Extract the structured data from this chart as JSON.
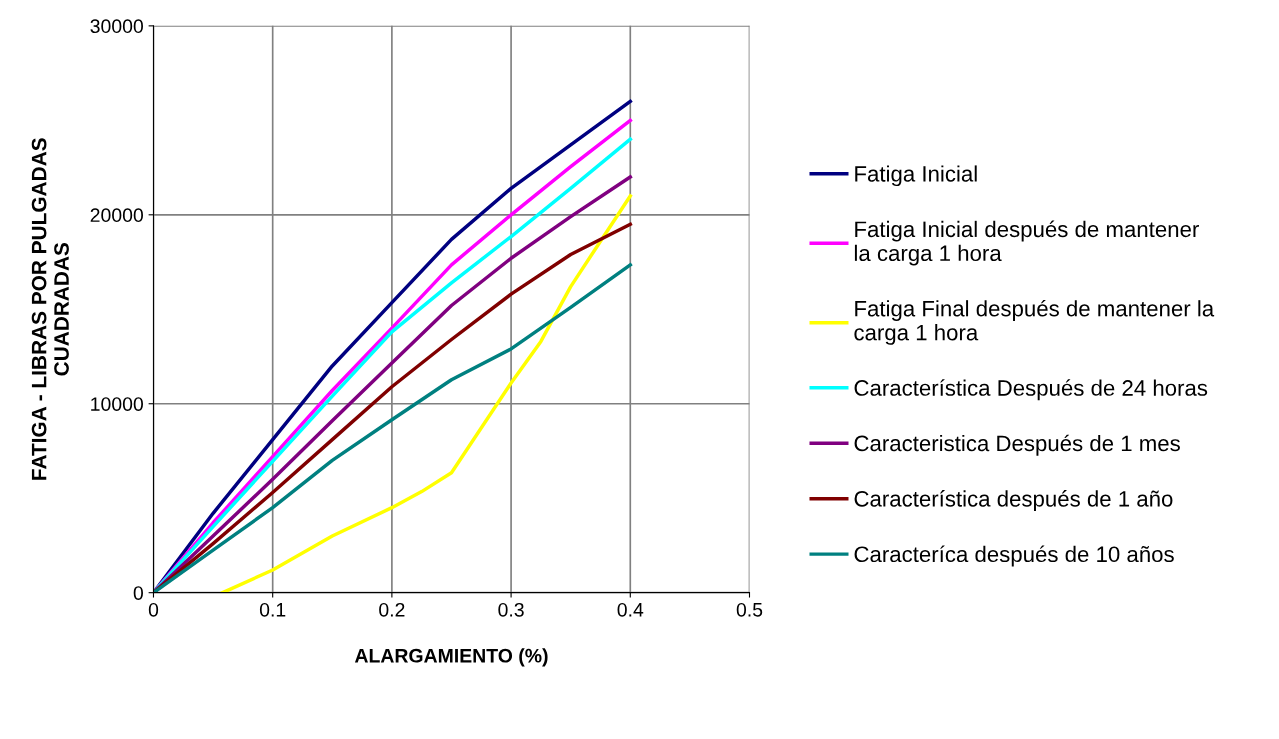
{
  "chart_data": {
    "type": "line",
    "xlabel": "ALARGAMIENTO (%)",
    "ylabel": "FATIGA - LIBRAS POR PULGADAS\nCUADRADAS",
    "x": [
      0,
      0.05,
      0.1,
      0.15,
      0.2,
      0.25,
      0.3,
      0.35,
      0.4
    ],
    "series": [
      {
        "name": "Fatiga Inicial",
        "color": "#000080",
        "values": [
          0,
          4200,
          8100,
          12000,
          15350,
          18700,
          21400,
          23700,
          26000
        ]
      },
      {
        "name": "Fatiga Inicial después de mantener\nla carga 1 hora",
        "color": "#ff00ff",
        "values": [
          0,
          3700,
          7200,
          10700,
          14000,
          17350,
          20000,
          22550,
          25000
        ]
      },
      {
        "name": "Fatiga Final después de mantener la\ncarga 1 hora",
        "color": "#ffff00",
        "x": [
          0.058,
          0.1,
          0.15,
          0.2,
          0.225,
          0.25,
          0.3,
          0.325,
          0.35,
          0.4
        ],
        "values": [
          0,
          1200,
          3000,
          4500,
          5350,
          6350,
          11100,
          13300,
          16200,
          21000
        ]
      },
      {
        "name": "Característica Después de 24 horas",
        "color": "#00ffff",
        "values": [
          0,
          3500,
          6950,
          10400,
          13800,
          16400,
          18850,
          21400,
          24000
        ]
      },
      {
        "name": "Caracteristica Después de 1 mes",
        "color": "#800080",
        "values": [
          0,
          3000,
          6000,
          9100,
          12150,
          15200,
          17700,
          19900,
          22000
        ]
      },
      {
        "name": "Característica después de 1 año",
        "color": "#800000",
        "values": [
          0,
          2600,
          5300,
          8100,
          10900,
          13400,
          15800,
          17900,
          19500
        ]
      },
      {
        "name": "Caracteríca después de 10 años",
        "color": "#008080",
        "values": [
          0,
          2250,
          4500,
          7000,
          9150,
          11270,
          12900,
          15100,
          17350
        ]
      }
    ],
    "xlim": [
      0,
      0.5
    ],
    "xticks": [
      0,
      0.1,
      0.2,
      0.3,
      0.4,
      0.5
    ],
    "ylim": [
      0,
      30000
    ],
    "yticks": [
      0,
      10000,
      20000,
      30000
    ],
    "grid": true,
    "legend": "right",
    "marker": "none",
    "line_style": "solid"
  }
}
